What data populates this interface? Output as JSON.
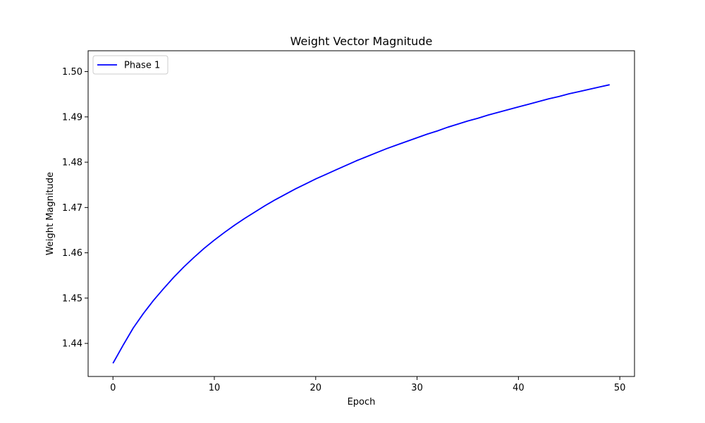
{
  "chart_data": {
    "type": "line",
    "title": "Weight Vector Magnitude",
    "xlabel": "Epoch",
    "ylabel": "Weight Magnitude",
    "xlim": [
      -2.45,
      51.45
    ],
    "ylim": [
      1.4327,
      1.5046
    ],
    "xticks": [
      0,
      10,
      20,
      30,
      40,
      50
    ],
    "yticks": [
      1.44,
      1.45,
      1.46,
      1.47,
      1.48,
      1.49,
      1.5
    ],
    "ytick_labels": [
      "1.44",
      "1.45",
      "1.46",
      "1.47",
      "1.48",
      "1.49",
      "1.50"
    ],
    "grid": false,
    "legend_position": "top-left",
    "series": [
      {
        "name": "Phase 1",
        "color": "#0000ff",
        "x": [
          0,
          1,
          2,
          3,
          4,
          5,
          6,
          7,
          8,
          9,
          10,
          11,
          12,
          13,
          14,
          15,
          16,
          17,
          18,
          19,
          20,
          21,
          22,
          23,
          24,
          25,
          26,
          27,
          28,
          29,
          30,
          31,
          32,
          33,
          34,
          35,
          36,
          37,
          38,
          39,
          40,
          41,
          42,
          43,
          44,
          45,
          46,
          47,
          48,
          49
        ],
        "y": [
          1.4356,
          1.4396,
          1.4434,
          1.4466,
          1.4495,
          1.4521,
          1.4546,
          1.4569,
          1.459,
          1.461,
          1.4628,
          1.4645,
          1.4661,
          1.4676,
          1.469,
          1.4704,
          1.4717,
          1.4729,
          1.4741,
          1.4752,
          1.4763,
          1.4773,
          1.4783,
          1.4793,
          1.4803,
          1.4812,
          1.4821,
          1.483,
          1.4838,
          1.4846,
          1.4854,
          1.4862,
          1.4869,
          1.4877,
          1.4884,
          1.4891,
          1.4897,
          1.4904,
          1.491,
          1.4916,
          1.4922,
          1.4928,
          1.4934,
          1.494,
          1.4945,
          1.4951,
          1.4956,
          1.4961,
          1.4966,
          1.4971
        ]
      }
    ]
  }
}
